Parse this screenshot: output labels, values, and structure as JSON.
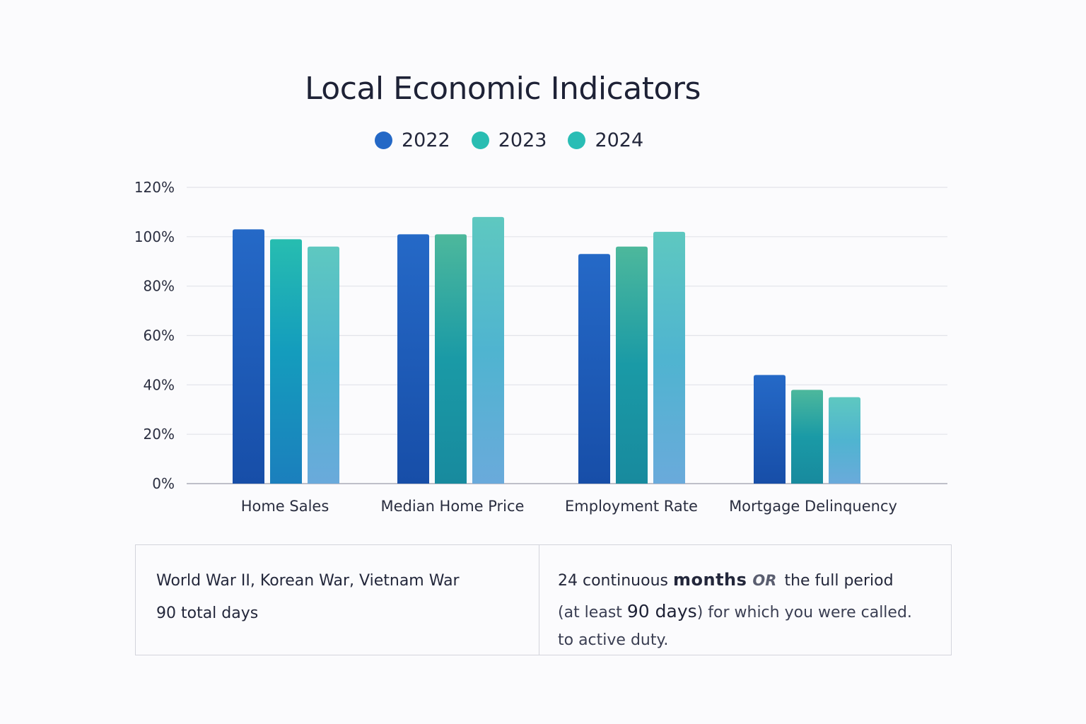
{
  "title": "Local Economic Indicators",
  "legend": [
    {
      "label": "2022",
      "color": "#2468c6"
    },
    {
      "label": "2023",
      "color": "#29bdb2"
    },
    {
      "label": "2024",
      "color": "#2abdb5"
    }
  ],
  "chart_data": {
    "type": "bar",
    "title": "Local Economic Indicators",
    "xlabel": "",
    "ylabel": "",
    "categories": [
      "Home Sales",
      "Median Home Price",
      "Employment Rate",
      "Mortgage Delinquency"
    ],
    "series": [
      {
        "name": "2022",
        "values": [
          103,
          101,
          93,
          44
        ]
      },
      {
        "name": "2023",
        "values": [
          99,
          101,
          96,
          38
        ]
      },
      {
        "name": "2024",
        "values": [
          96,
          108,
          102,
          35
        ]
      }
    ],
    "ylim": [
      0,
      120
    ],
    "yticks": [
      0,
      20,
      40,
      60,
      80,
      100,
      120
    ],
    "ytick_labels": [
      "0%",
      "20%",
      "40%",
      "60%",
      "80%",
      "100%",
      "120%"
    ],
    "grid": true,
    "legend_position": "top-center"
  },
  "table": {
    "left": {
      "line1": "World War II, Korean War, Vietnam War",
      "line2": "90 total days"
    },
    "right": {
      "part1": "24 continuous ",
      "bold1": "months",
      "or": "OR",
      "part2": " the full period",
      "part3": "(at least ",
      "big": "90 days",
      "part4": ") for which you were called.",
      "line3": "to active duty."
    }
  }
}
